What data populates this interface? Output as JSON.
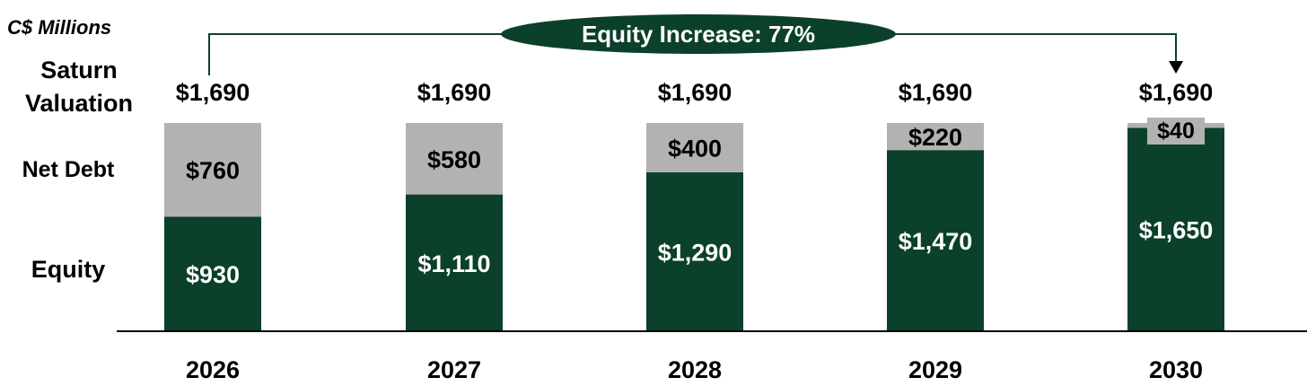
{
  "colors": {
    "equity": "#0b402a",
    "net_debt": "#b2b2b2",
    "text_dark": "#000000",
    "text_light": "#ffffff",
    "callout_fill": "#0b402a"
  },
  "chart_data": {
    "type": "bar",
    "stacked": true,
    "unit_label": "C$ Millions",
    "categories": [
      "2026",
      "2027",
      "2028",
      "2029",
      "2030"
    ],
    "series": [
      {
        "name": "Equity",
        "values": [
          930,
          1110,
          1290,
          1470,
          1650
        ],
        "labels": [
          "$930",
          "$1,110",
          "$1,290",
          "$1,470",
          "$1,650"
        ]
      },
      {
        "name": "Net Debt",
        "values": [
          760,
          580,
          400,
          220,
          40
        ],
        "labels": [
          "$760",
          "$580",
          "$400",
          "$220",
          "$40"
        ]
      }
    ],
    "totals": [
      1690,
      1690,
      1690,
      1690,
      1690
    ],
    "total_labels": [
      "$1,690",
      "$1,690",
      "$1,690",
      "$1,690",
      "$1,690"
    ],
    "row_labels": {
      "valuation_line1": "Saturn",
      "valuation_line2": "Valuation",
      "net_debt": "Net Debt",
      "equity": "Equity"
    },
    "callout": {
      "text": "Equity Increase: 77%",
      "from": "2026",
      "to": "2030"
    },
    "ylim": [
      0,
      1690
    ],
    "grid": false,
    "legend": "none"
  }
}
